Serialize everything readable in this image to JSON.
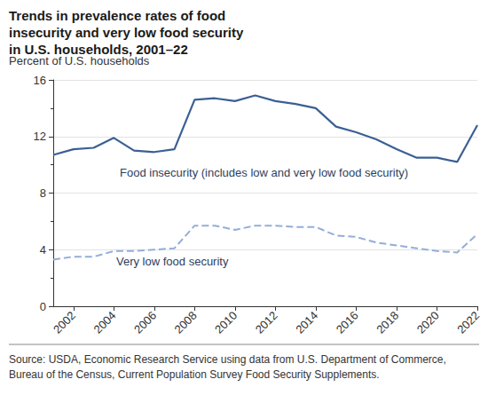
{
  "chart_data": {
    "type": "line",
    "title": "Trends in prevalence rates of food insecurity and very low food security in U.S. households, 2001–22",
    "ylabel": "Percent of U.S. households",
    "source": "Source: USDA, Economic Research Service using data from U.S. Department of Commerce, Bureau of the Census, Current Population Survey Food Security Supplements.",
    "x": [
      2001,
      2002,
      2003,
      2004,
      2005,
      2006,
      2007,
      2008,
      2009,
      2010,
      2011,
      2012,
      2013,
      2014,
      2015,
      2016,
      2017,
      2018,
      2019,
      2020,
      2021,
      2022
    ],
    "series": [
      {
        "name": "Food insecurity (includes low and very low food security)",
        "color": "#3b5f95",
        "line_style": "solid",
        "values": [
          10.7,
          11.1,
          11.2,
          11.9,
          11.0,
          10.9,
          11.1,
          14.6,
          14.7,
          14.5,
          14.9,
          14.5,
          14.3,
          14.0,
          12.7,
          12.3,
          11.8,
          11.1,
          10.5,
          10.5,
          10.2,
          12.8
        ]
      },
      {
        "name": "Very low food security",
        "color": "#93aed8",
        "line_style": "dashed",
        "values": [
          3.3,
          3.5,
          3.5,
          3.9,
          3.9,
          4.0,
          4.1,
          5.7,
          5.7,
          5.4,
          5.7,
          5.7,
          5.6,
          5.6,
          5.0,
          4.9,
          4.5,
          4.3,
          4.1,
          3.9,
          3.8,
          5.1
        ]
      }
    ],
    "xlim": [
      2001,
      2022
    ],
    "xticks": [
      2002,
      2004,
      2006,
      2008,
      2010,
      2012,
      2014,
      2016,
      2018,
      2020,
      2022
    ],
    "ylim": [
      0,
      16
    ],
    "yticks": [
      0,
      4,
      8,
      12,
      16
    ],
    "grid": true
  }
}
